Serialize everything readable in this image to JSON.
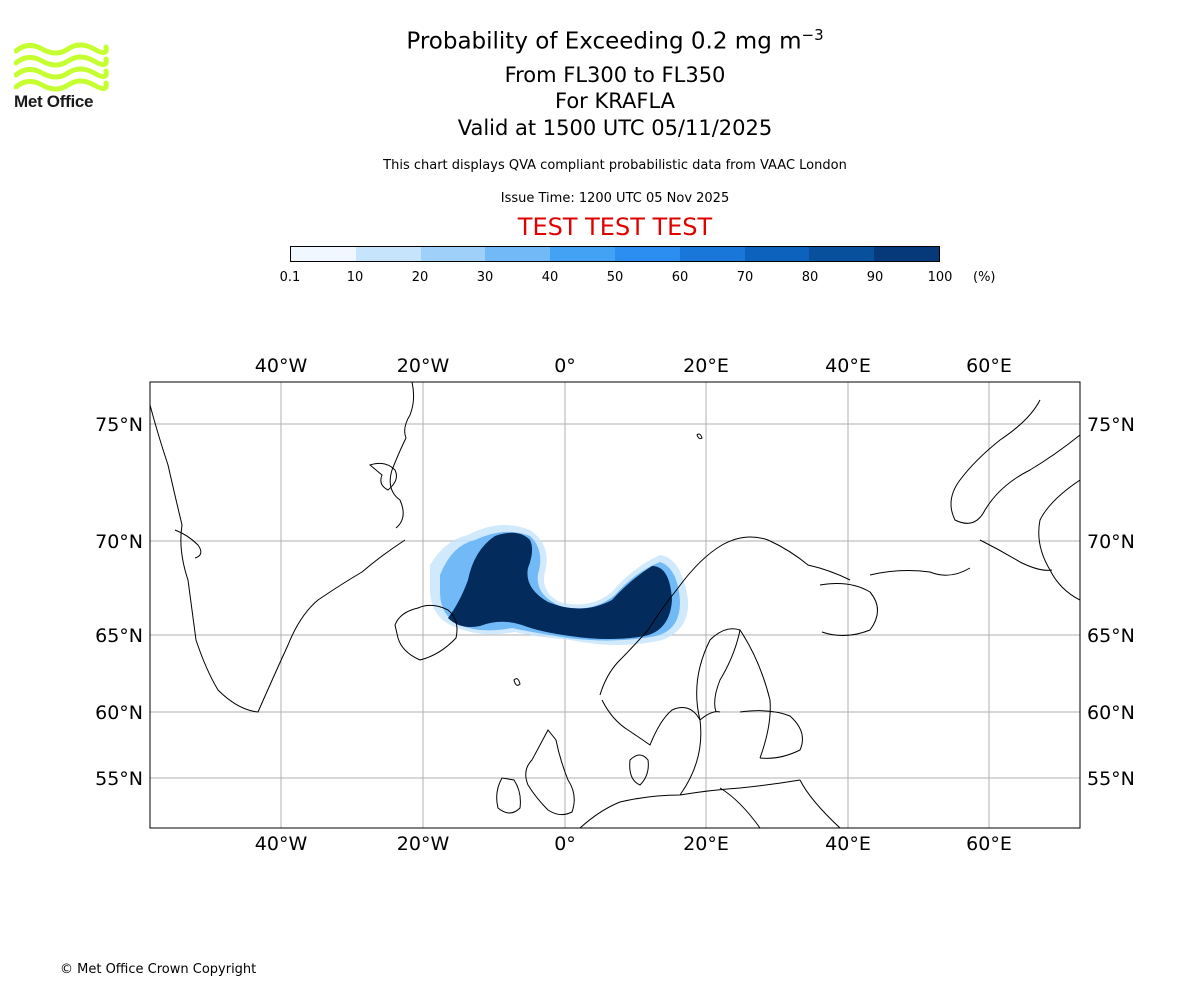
{
  "logo": {
    "text": "Met Office",
    "icon": "met-office-wave-logo",
    "color": "#c5ff31"
  },
  "titles": {
    "main_prefix": "Probability of Exceeding 0.2 mg m",
    "main_exponent": "−3",
    "levels": "From FL300 to FL350",
    "volcano": "For KRAFLA",
    "valid": "Valid at 1500 UTC 05/11/2025",
    "description": "This chart displays QVA compliant probabilistic data from VAAC London",
    "issue_time": "Issue Time: 1200 UTC 05 Nov 2025",
    "test_banner": "TEST TEST TEST"
  },
  "colorbar": {
    "ticks": [
      "0.1",
      "10",
      "20",
      "30",
      "40",
      "50",
      "60",
      "70",
      "80",
      "90",
      "100"
    ],
    "unit": "(%)",
    "colors": [
      "#f0f7ff",
      "#c6e4fb",
      "#9fd0fa",
      "#71b9f7",
      "#44a2f4",
      "#2b8ef0",
      "#1877d9",
      "#0d62bd",
      "#084f9c",
      "#05397a",
      "#032b5c"
    ]
  },
  "map": {
    "lon_labels": [
      "40°W",
      "20°W",
      "0°",
      "20°E",
      "40°E",
      "60°E"
    ],
    "lat_labels": [
      "75°N",
      "70°N",
      "65°N",
      "60°N",
      "55°N"
    ],
    "gridline_color": "#b0b0b0",
    "plume_color": "#032b5c"
  },
  "footer": {
    "copyright": "© Met Office Crown Copyright"
  }
}
